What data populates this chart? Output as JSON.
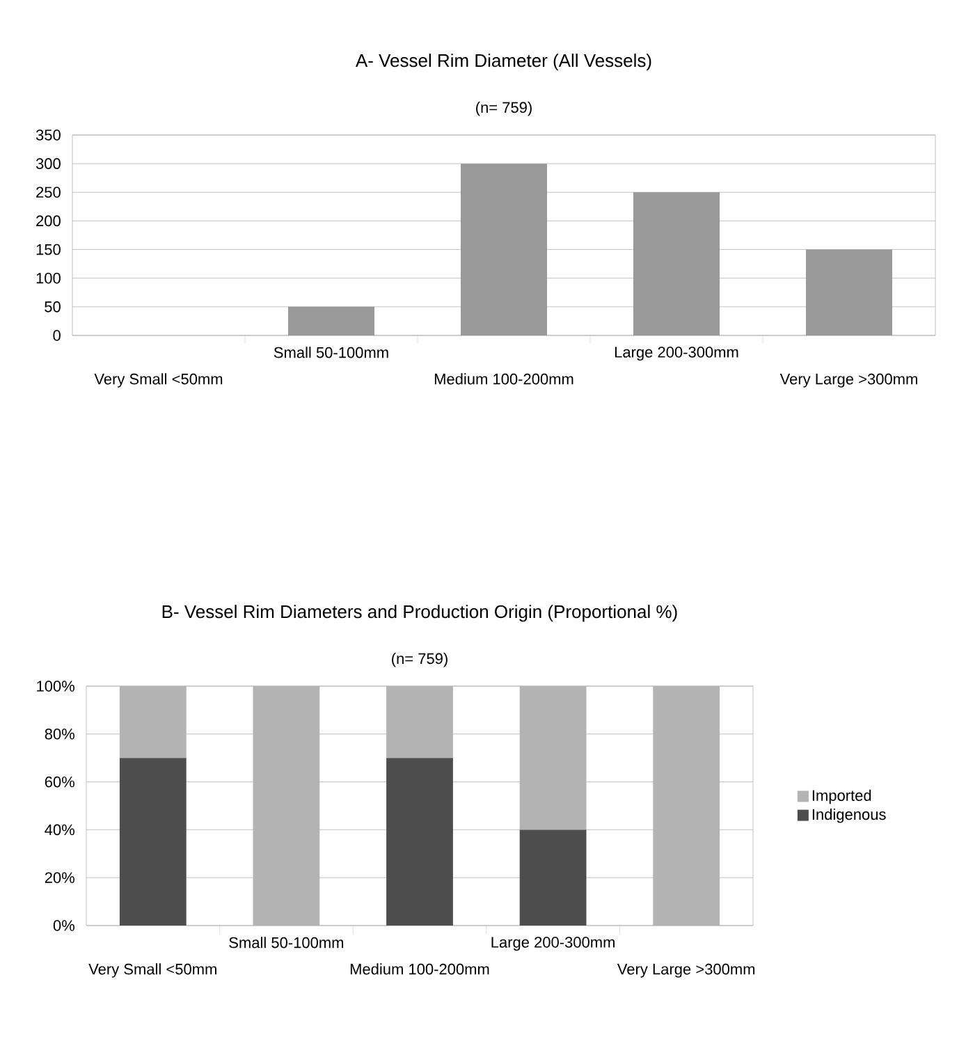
{
  "chart_data": [
    {
      "type": "bar",
      "title": "A- Vessel Rim Diameter (All Vessels)",
      "subtitle": "(n= 759)",
      "categories": [
        "Very Small <50mm",
        "Small 50-100mm",
        "Medium 100-200mm",
        "Large 200-300mm",
        "Very Large >300mm"
      ],
      "values": [
        0,
        50,
        300,
        250,
        150
      ],
      "color": "#999999",
      "ylim": [
        0,
        350
      ],
      "yticks": [
        0,
        50,
        100,
        150,
        200,
        250,
        300,
        350
      ],
      "grid": "y",
      "legend": false
    },
    {
      "type": "bar",
      "stacked": true,
      "title": "B- Vessel Rim Diameters and Production Origin (Proportional %)",
      "subtitle": "(n= 759)",
      "categories": [
        "Very Small <50mm",
        "Small 50-100mm",
        "Medium 100-200mm",
        "Large 200-300mm",
        "Very Large >300mm"
      ],
      "series": [
        {
          "name": "Indigenous",
          "color": "#4d4d4d",
          "values": [
            70,
            0,
            70,
            40,
            0
          ]
        },
        {
          "name": "Imported",
          "color": "#b3b3b3",
          "values": [
            30,
            100,
            30,
            60,
            100
          ]
        }
      ],
      "ylim": [
        0,
        100
      ],
      "yticks": [
        {
          "value": 0,
          "label": "0%"
        },
        {
          "value": 20,
          "label": "20%"
        },
        {
          "value": 40,
          "label": "40%"
        },
        {
          "value": 60,
          "label": "60%"
        },
        {
          "value": 80,
          "label": "80%"
        },
        {
          "value": 100,
          "label": "100%"
        }
      ],
      "grid": "y",
      "legend": "right"
    }
  ]
}
